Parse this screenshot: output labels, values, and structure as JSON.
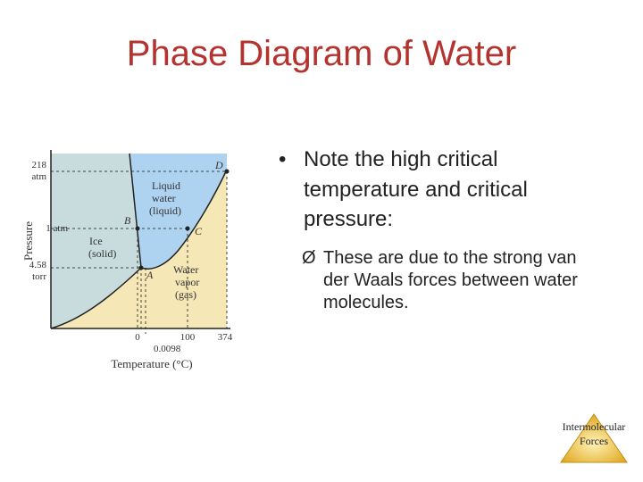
{
  "slide": {
    "title": "Phase Diagram of Water",
    "bullet_main": "Note the high critical temperature and critical pressure:",
    "bullet_sub": "These are due to the strong van der Waals forces between water molecules.",
    "bullet_marker": "•",
    "sub_bullet_marker": "Ø"
  },
  "diagram": {
    "y_axis_label": "Pressure",
    "x_axis_label": "Temperature (°C)",
    "y_ticks": {
      "p1a": "218",
      "p1b": "atm",
      "p2": "1 atm",
      "p3a": "4.58",
      "p3b": "torr"
    },
    "x_ticks": {
      "t0": "0",
      "t100": "100",
      "t374": "374",
      "t0098": "0.0098"
    },
    "points": {
      "A": "A",
      "B": "B",
      "C": "C",
      "D": "D"
    },
    "regions": {
      "liquid_1": "Liquid",
      "liquid_2": "water",
      "liquid_3": "(liquid)",
      "ice_1": "Ice",
      "ice_2": "(solid)",
      "vapor_1": "Water",
      "vapor_2": "vapor",
      "vapor_3": "(gas)"
    },
    "colors": {
      "liquid": "#aed3f0",
      "vapor": "#f6e7b6",
      "solid": "#c9dcdd"
    }
  },
  "logo": {
    "line1": "Intermolecular",
    "line2": "Forces",
    "color": "#e8b631"
  }
}
